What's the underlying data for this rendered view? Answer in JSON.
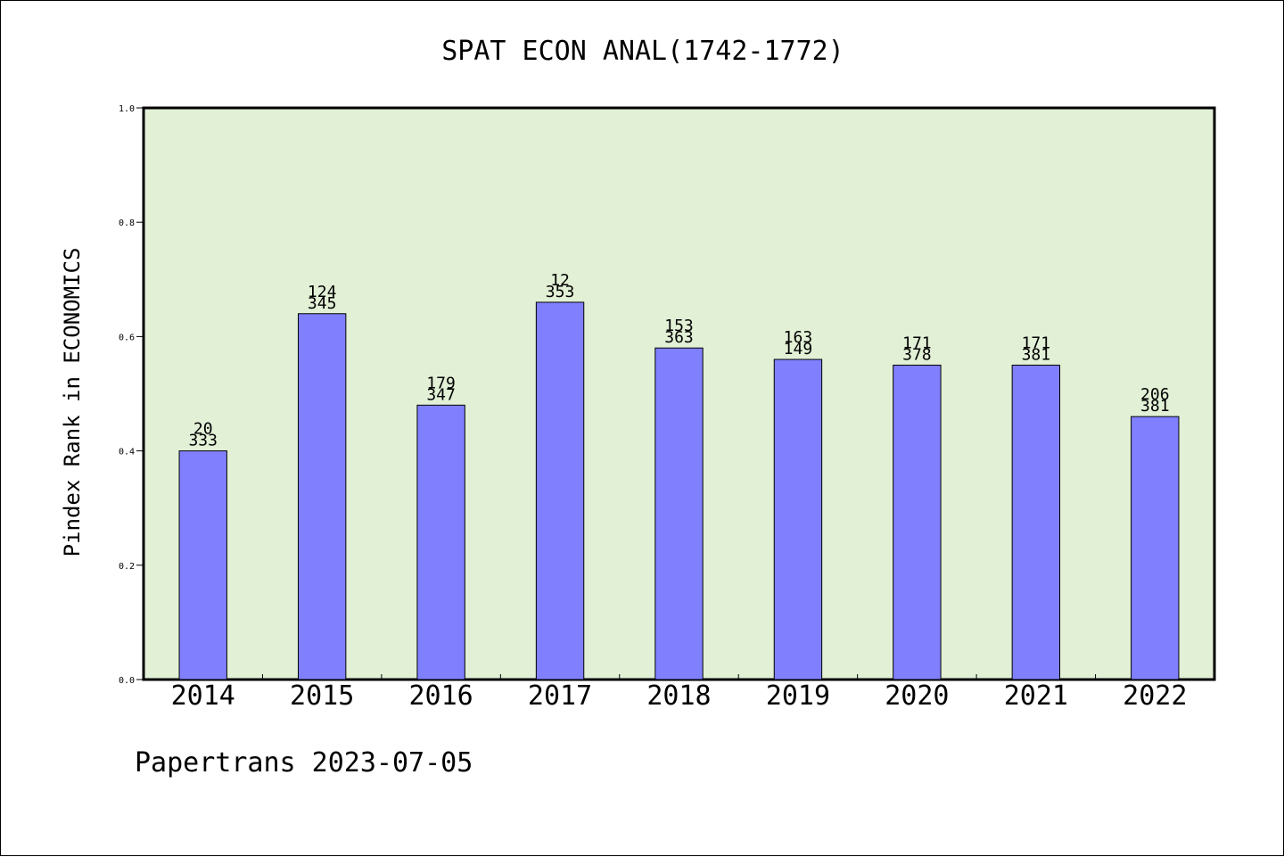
{
  "chart_data": {
    "type": "bar",
    "title": "SPAT ECON ANAL(1742-1772)",
    "ylabel": "Pindex Rank in ECONOMICS",
    "xlabel": "",
    "ylim": [
      0,
      1.0
    ],
    "yticks": [
      "0.0",
      "0.2",
      "0.4",
      "0.6",
      "0.8",
      "1.0"
    ],
    "grid": false,
    "categories": [
      "2014",
      "2015",
      "2016",
      "2017",
      "2018",
      "2019",
      "2020",
      "2021",
      "2022"
    ],
    "values": [
      0.4,
      0.64,
      0.48,
      0.66,
      0.58,
      0.56,
      0.55,
      0.55,
      0.46
    ],
    "labels_top": [
      "20",
      "124",
      "179",
      "12",
      "153",
      "163",
      "171",
      "171",
      "206"
    ],
    "labels_bottom": [
      "333",
      "345",
      "347",
      "353",
      "363",
      "149",
      "378",
      "381",
      "381"
    ]
  },
  "footer": "Papertrans 2023-07-05",
  "colors": {
    "plot_background": "#e2f0d6",
    "bar_fill": "#8080ff",
    "bar_stroke": "#000000"
  }
}
